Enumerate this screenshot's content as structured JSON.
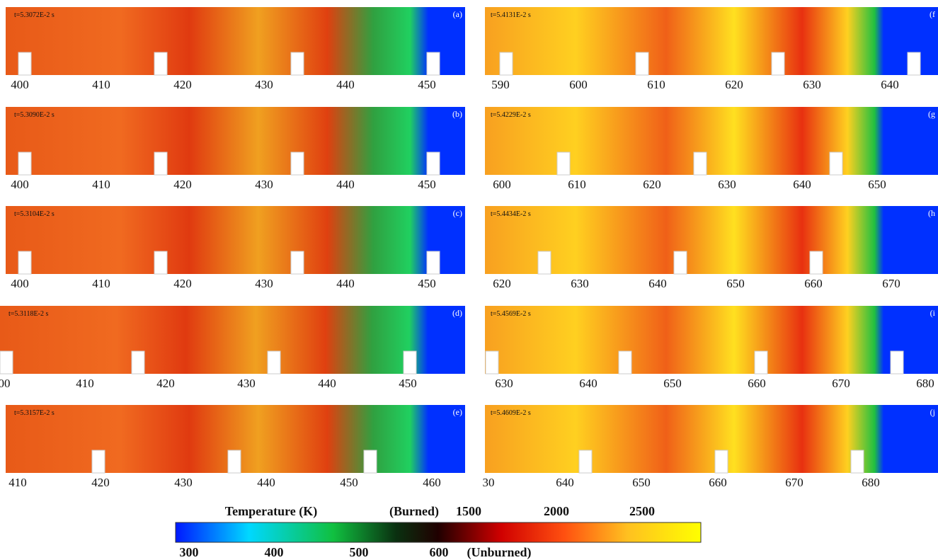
{
  "panels": [
    {
      "time": "t=5.3072E-2 s",
      "label": "(a)",
      "ticks": [
        "400",
        "410",
        "420",
        "430",
        "440",
        "450"
      ]
    },
    {
      "time": "t=5.3090E-2 s",
      "label": "(b)",
      "ticks": [
        "400",
        "410",
        "420",
        "430",
        "440",
        "450"
      ]
    },
    {
      "time": "t=5.3104E-2 s",
      "label": "(c)",
      "ticks": [
        "400",
        "410",
        "420",
        "430",
        "440",
        "450"
      ]
    },
    {
      "time": "t=5.3118E-2 s",
      "label": "(d)",
      "ticks": [
        "00",
        "410",
        "420",
        "430",
        "440",
        "450"
      ]
    },
    {
      "time": "t=5.3157E-2 s",
      "label": "(e)",
      "ticks": [
        "410",
        "420",
        "430",
        "440",
        "450",
        "460"
      ]
    },
    {
      "time": "t=5.4131E-2 s",
      "label": "(f",
      "ticks": [
        "590",
        "600",
        "610",
        "620",
        "630",
        "640"
      ]
    },
    {
      "time": "t=5.4229E-2 s",
      "label": "(g",
      "ticks": [
        "600",
        "610",
        "620",
        "630",
        "640",
        "650"
      ]
    },
    {
      "time": "t=5.4434E-2 s",
      "label": "(h",
      "ticks": [
        "620",
        "630",
        "640",
        "650",
        "660",
        "670"
      ]
    },
    {
      "time": "t=5.4569E-2 s",
      "label": "(i",
      "ticks": [
        "630",
        "640",
        "650",
        "660",
        "670",
        "680"
      ]
    },
    {
      "time": "t=5.4609E-2 s",
      "label": "(j",
      "ticks": [
        "30",
        "640",
        "650",
        "660",
        "670",
        "680"
      ]
    }
  ],
  "colorbar": {
    "title": "Temperature (K)",
    "top_labels": [
      "(Burned)",
      "1500",
      "2000",
      "2500"
    ],
    "bottom_labels": [
      "300",
      "400",
      "500",
      "600",
      "(Unburned)"
    ]
  }
}
